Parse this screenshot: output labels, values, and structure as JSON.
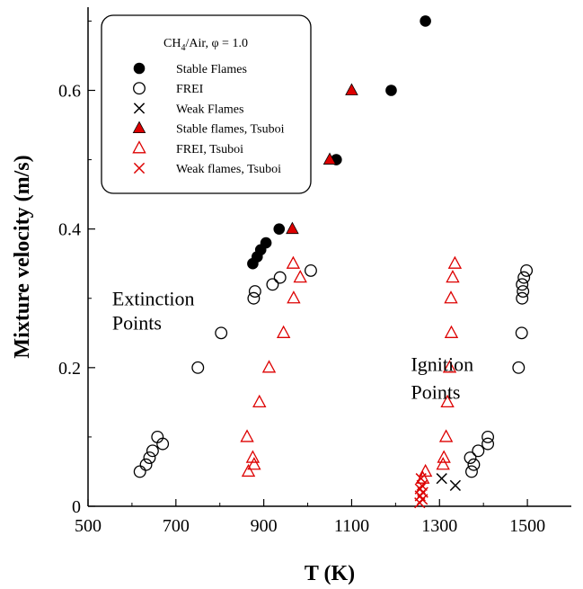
{
  "chart_data": {
    "type": "scatter",
    "title": "",
    "xlabel": "T (K)",
    "ylabel": "Mixture velocity (m/s)",
    "xlim": [
      500,
      1600
    ],
    "ylim": [
      0,
      0.72
    ],
    "xticks": [
      500,
      700,
      900,
      1100,
      1300,
      1500
    ],
    "xtick_labels": [
      "500",
      "700",
      "900",
      "1100",
      "1300",
      "1500"
    ],
    "yticks": [
      0,
      0.2,
      0.4,
      0.6
    ],
    "ytick_labels": [
      "0",
      "0.2",
      "0.4",
      "0.6"
    ],
    "grid": false,
    "legend_position": "top-left",
    "legend_title": "CH4/Air, φ = 1.0",
    "series": [
      {
        "name": "Stable Flames",
        "marker": "filled-circle",
        "color": "#000000",
        "points": [
          [
            875,
            0.35
          ],
          [
            885,
            0.36
          ],
          [
            893,
            0.37
          ],
          [
            905,
            0.38
          ],
          [
            935,
            0.4
          ],
          [
            1065,
            0.5
          ],
          [
            1190,
            0.6
          ],
          [
            1268,
            0.7
          ]
        ]
      },
      {
        "name": "FREI",
        "marker": "open-circle",
        "color": "#000000",
        "points": [
          [
            618,
            0.05
          ],
          [
            632,
            0.06
          ],
          [
            640,
            0.07
          ],
          [
            647,
            0.08
          ],
          [
            658,
            0.1
          ],
          [
            670,
            0.09
          ],
          [
            750,
            0.2
          ],
          [
            803,
            0.25
          ],
          [
            877,
            0.3
          ],
          [
            880,
            0.31
          ],
          [
            920,
            0.32
          ],
          [
            937,
            0.33
          ],
          [
            1007,
            0.34
          ],
          [
            1373,
            0.05
          ],
          [
            1378,
            0.06
          ],
          [
            1370,
            0.07
          ],
          [
            1388,
            0.08
          ],
          [
            1410,
            0.09
          ],
          [
            1410,
            0.1
          ],
          [
            1480,
            0.2
          ],
          [
            1487,
            0.25
          ],
          [
            1488,
            0.3
          ],
          [
            1490,
            0.31
          ],
          [
            1488,
            0.32
          ],
          [
            1492,
            0.33
          ],
          [
            1498,
            0.34
          ]
        ]
      },
      {
        "name": "Weak Flames",
        "marker": "cross",
        "color": "#000000",
        "points": [
          [
            1305,
            0.04
          ],
          [
            1336,
            0.03
          ]
        ]
      },
      {
        "name": "Stable flames, Tsuboi",
        "marker": "filled-triangle",
        "color": "#dd0000",
        "points": [
          [
            965,
            0.4
          ],
          [
            1050,
            0.5
          ],
          [
            1100,
            0.6
          ]
        ]
      },
      {
        "name": "FREI, Tsuboi",
        "marker": "open-triangle",
        "color": "#dd0000",
        "points": [
          [
            865,
            0.05
          ],
          [
            878,
            0.06
          ],
          [
            875,
            0.07
          ],
          [
            862,
            0.1
          ],
          [
            890,
            0.15
          ],
          [
            912,
            0.2
          ],
          [
            945,
            0.25
          ],
          [
            968,
            0.3
          ],
          [
            967,
            0.35
          ],
          [
            983,
            0.33
          ],
          [
            1262,
            0.04
          ],
          [
            1268,
            0.05
          ],
          [
            1308,
            0.06
          ],
          [
            1310,
            0.07
          ],
          [
            1315,
            0.1
          ],
          [
            1318,
            0.15
          ],
          [
            1323,
            0.2
          ],
          [
            1327,
            0.25
          ],
          [
            1326,
            0.3
          ],
          [
            1330,
            0.33
          ],
          [
            1335,
            0.35
          ]
        ]
      },
      {
        "name": "Weak flames, Tsuboi",
        "marker": "cross",
        "color": "#dd0000",
        "points": [
          [
            1255,
            0.005
          ],
          [
            1261,
            0.01
          ],
          [
            1256,
            0.015
          ],
          [
            1262,
            0.02
          ],
          [
            1256,
            0.025
          ],
          [
            1260,
            0.03
          ],
          [
            1258,
            0.04
          ]
        ]
      }
    ],
    "annotations": [
      {
        "text": "Extinction",
        "x": 555,
        "y": 0.29
      },
      {
        "text": "Points",
        "x": 555,
        "y": 0.255
      },
      {
        "text": "Ignition",
        "x": 1235,
        "y": 0.195
      },
      {
        "text": "Points",
        "x": 1235,
        "y": 0.155
      }
    ]
  }
}
